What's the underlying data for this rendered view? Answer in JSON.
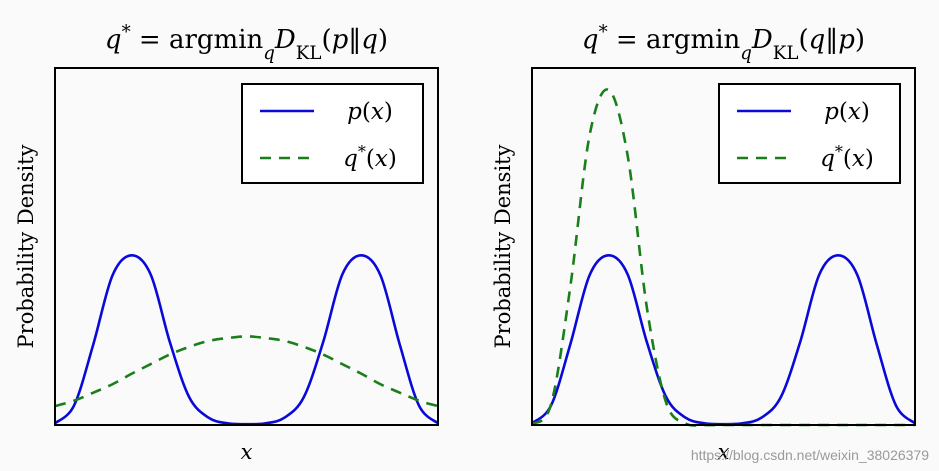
{
  "chart_data": [
    {
      "type": "line",
      "title": "q* = argmin_q D_KL(p‖q)",
      "xlabel": "x",
      "ylabel": "Probability Density",
      "grid": false,
      "legend_position": "top-right",
      "x": [
        0,
        0.5,
        1,
        1.5,
        2,
        2.5,
        3,
        3.5,
        4,
        4.5,
        5,
        5.5,
        6,
        6.5,
        7,
        7.5,
        8,
        8.5,
        9,
        9.5,
        10
      ],
      "series": [
        {
          "name": "p(x)",
          "color": "#0a0ad8",
          "style": "solid",
          "values": [
            0.004,
            0.047,
            0.192,
            0.356,
            0.404,
            0.358,
            0.197,
            0.067,
            0.018,
            0.004,
            0.002,
            0.004,
            0.018,
            0.067,
            0.197,
            0.358,
            0.404,
            0.356,
            0.192,
            0.047,
            0.004
          ]
        },
        {
          "name": "q*(x)",
          "color": "#1a7f1a",
          "style": "dashed",
          "values": [
            0.045,
            0.058,
            0.077,
            0.097,
            0.122,
            0.145,
            0.168,
            0.186,
            0.2,
            0.207,
            0.211,
            0.207,
            0.2,
            0.186,
            0.168,
            0.145,
            0.122,
            0.097,
            0.077,
            0.058,
            0.045
          ]
        }
      ]
    },
    {
      "type": "line",
      "title": "q* = argmin_q D_KL(q‖p)",
      "xlabel": "x",
      "ylabel": "Probability Density",
      "grid": false,
      "legend_position": "top-right",
      "x": [
        0,
        0.5,
        1,
        1.5,
        2,
        2.5,
        3,
        3.5,
        4,
        4.5,
        5,
        5.5,
        6,
        6.5,
        7,
        7.5,
        8,
        8.5,
        9,
        9.5,
        10
      ],
      "series": [
        {
          "name": "p(x)",
          "color": "#0a0ad8",
          "style": "solid",
          "values": [
            0.004,
            0.047,
            0.192,
            0.356,
            0.404,
            0.358,
            0.197,
            0.067,
            0.018,
            0.004,
            0.002,
            0.004,
            0.018,
            0.067,
            0.197,
            0.358,
            0.404,
            0.356,
            0.192,
            0.047,
            0.004
          ]
        },
        {
          "name": "q*(x)",
          "color": "#1a7f1a",
          "style": "dashed",
          "values": [
            0.002,
            0.05,
            0.329,
            0.688,
            0.798,
            0.64,
            0.279,
            0.054,
            0.004,
            0.0,
            0.0,
            0.0,
            0.0,
            0.0,
            0.0,
            0.0,
            0.0,
            0.0,
            0.0,
            0.0,
            0.0
          ]
        }
      ]
    }
  ],
  "ylim": [
    0,
    0.85
  ],
  "xlim": [
    0,
    10
  ],
  "watermark": "https://blog.csdn.net/weixin_38026379"
}
